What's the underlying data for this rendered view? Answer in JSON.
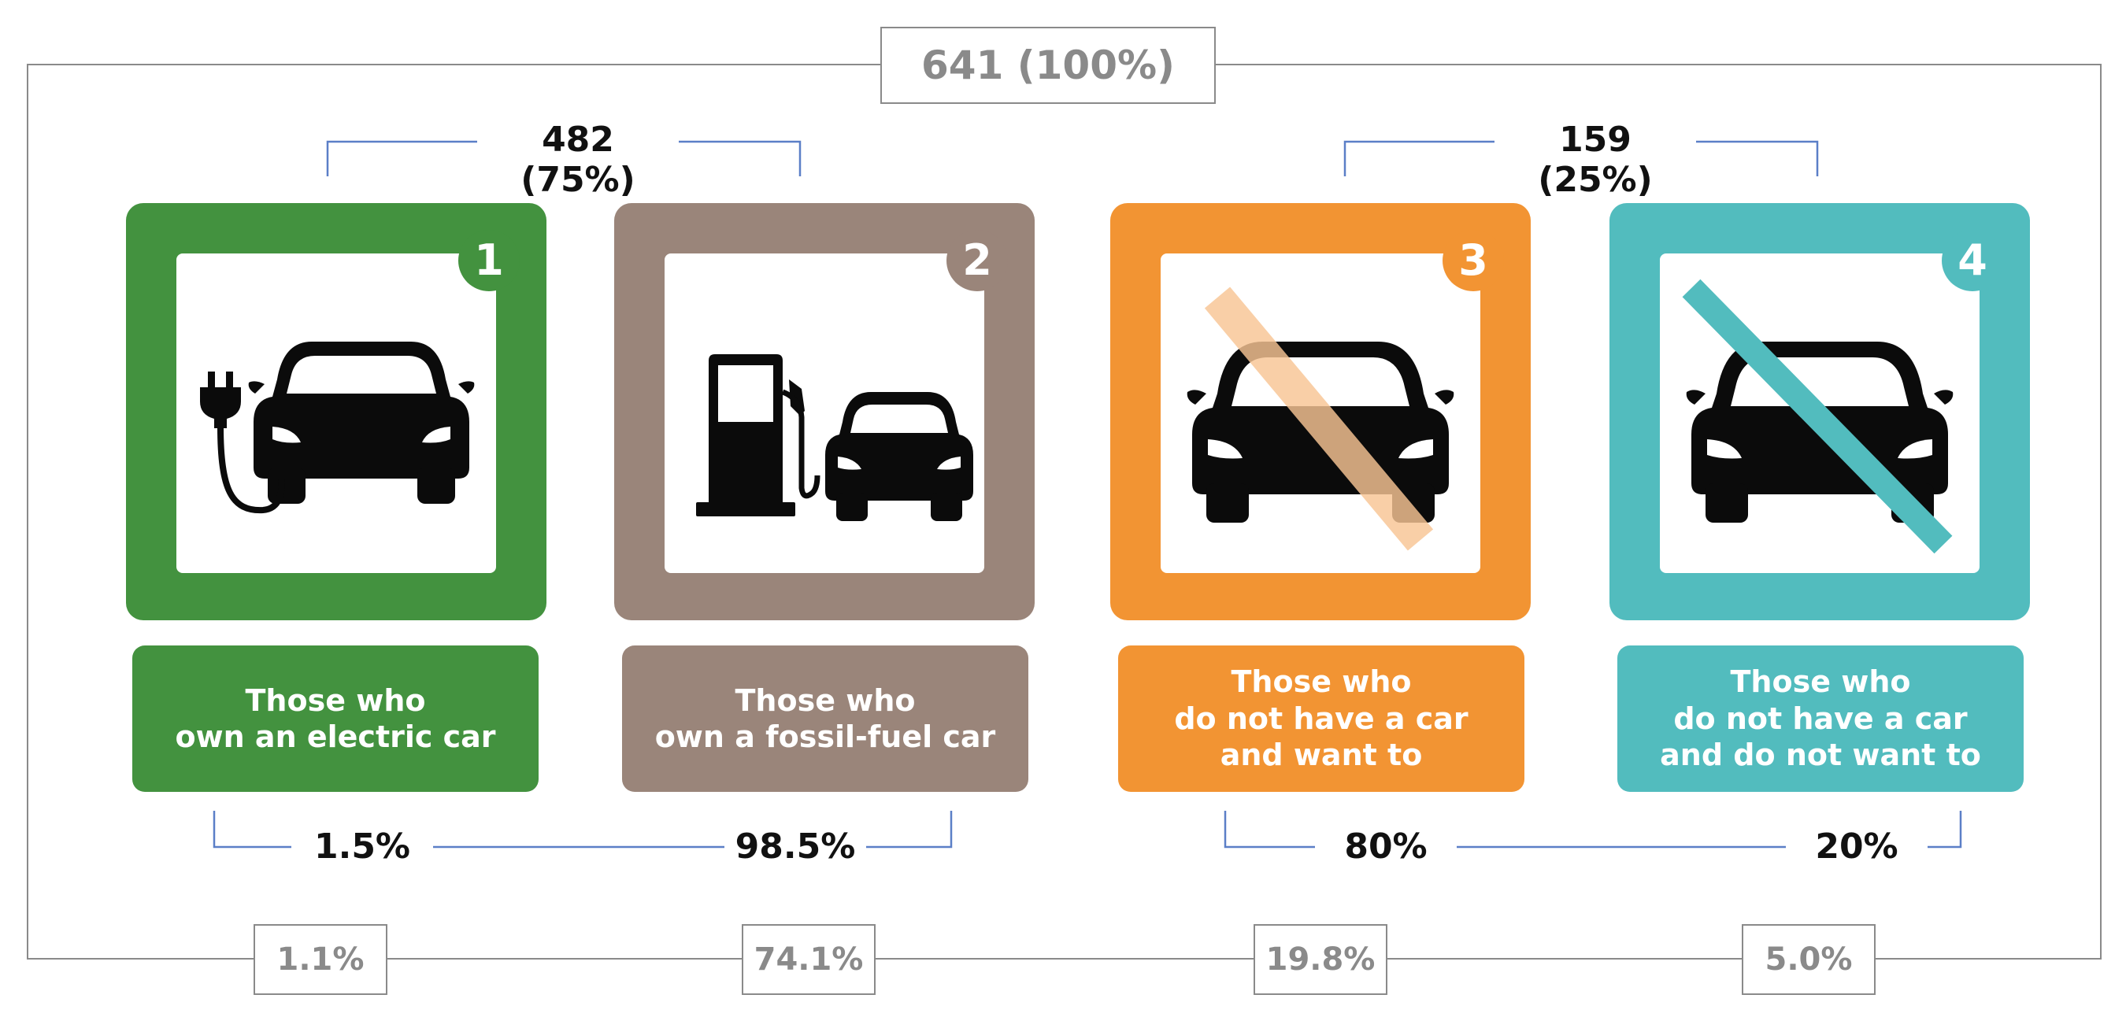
{
  "total": "641 (100%)",
  "groups": [
    {
      "label": "482 (75%)"
    },
    {
      "label": "159 (25%)"
    }
  ],
  "categories": [
    {
      "number": "1",
      "color": "#43923f",
      "icon": "electric-car-icon",
      "lines": [
        "Those who",
        "own an electric car"
      ]
    },
    {
      "number": "2",
      "color": "#9a857a",
      "icon": "fossil-fuel-car-icon",
      "lines": [
        "Those who",
        "own a fossil-fuel car"
      ]
    },
    {
      "number": "3",
      "color": "#f29433",
      "icon": "crossed-car-icon",
      "lines": [
        "Those who",
        "do not have a car",
        "and want to"
      ]
    },
    {
      "number": "4",
      "color": "#52bcbe",
      "icon": "crossed-car-icon",
      "lines": [
        "Those who",
        "do not have a car",
        "and do not want to"
      ]
    }
  ],
  "within_group": [
    "1.5%",
    "98.5%",
    "80%",
    "20%"
  ],
  "overall_share": [
    "1.1%",
    "74.1%",
    "19.8%",
    "5.0%"
  ],
  "colors": {
    "frame": "#8a8a8a",
    "bracket": "#5b7fc7",
    "car": "#0b0b0b"
  }
}
